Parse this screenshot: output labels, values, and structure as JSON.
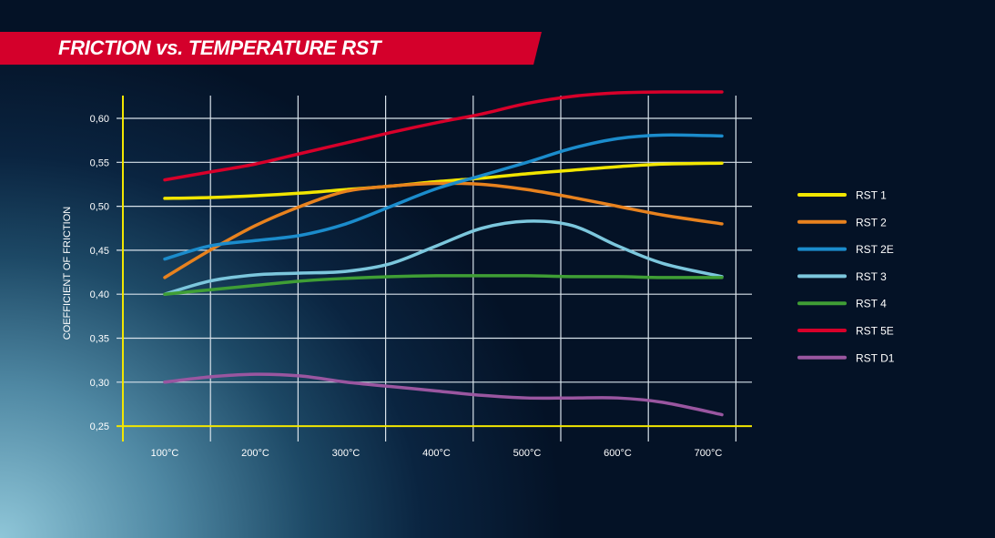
{
  "chart_data": {
    "type": "line",
    "title": "FRICTION vs. TEMPERATURE RST",
    "xlabel": "",
    "ylabel": "COEFFICIENT OF FRICTION",
    "x_ticks": [
      "100°C",
      "200°C",
      "300°C",
      "400°C",
      "500°C",
      "600°C",
      "700°C"
    ],
    "y_ticks": [
      "0,25",
      "0,30",
      "0,35",
      "0,40",
      "0,45",
      "0,50",
      "0,55",
      "0,60"
    ],
    "ylim": [
      0.25,
      0.63
    ],
    "grid": true,
    "legend_position": "right",
    "x": [
      100,
      150,
      200,
      250,
      300,
      350,
      400,
      450,
      500,
      550,
      600,
      650,
      700
    ],
    "series": [
      {
        "name": "RST 1",
        "color": "#f2e600",
        "values": [
          0.509,
          0.51,
          0.512,
          0.515,
          0.519,
          0.523,
          0.528,
          0.532,
          0.537,
          0.541,
          0.545,
          0.548,
          0.549
        ]
      },
      {
        "name": "RST 2",
        "color": "#e8821e",
        "values": [
          0.419,
          0.45,
          0.478,
          0.5,
          0.517,
          0.523,
          0.526,
          0.525,
          0.519,
          0.51,
          0.5,
          0.49,
          0.48
        ]
      },
      {
        "name": "RST 2E",
        "color": "#1b8ccc",
        "values": [
          0.44,
          0.455,
          0.461,
          0.467,
          0.48,
          0.5,
          0.52,
          0.535,
          0.55,
          0.566,
          0.577,
          0.581,
          0.58
        ]
      },
      {
        "name": "RST 3",
        "color": "#7cc7dd",
        "values": [
          0.4,
          0.415,
          0.422,
          0.424,
          0.426,
          0.435,
          0.455,
          0.475,
          0.483,
          0.478,
          0.455,
          0.435,
          0.42
        ]
      },
      {
        "name": "RST 4",
        "color": "#3f9e35",
        "values": [
          0.4,
          0.405,
          0.41,
          0.415,
          0.418,
          0.42,
          0.421,
          0.421,
          0.421,
          0.42,
          0.42,
          0.419,
          0.419
        ]
      },
      {
        "name": "RST 5E",
        "color": "#d8002a",
        "values": [
          0.53,
          0.539,
          0.548,
          0.56,
          0.572,
          0.584,
          0.595,
          0.605,
          0.617,
          0.625,
          0.629,
          0.63,
          0.63
        ]
      },
      {
        "name": "RST D1",
        "color": "#9a56a0",
        "values": [
          0.3,
          0.306,
          0.309,
          0.307,
          0.3,
          0.295,
          0.29,
          0.285,
          0.282,
          0.282,
          0.282,
          0.277,
          0.263
        ]
      }
    ]
  }
}
